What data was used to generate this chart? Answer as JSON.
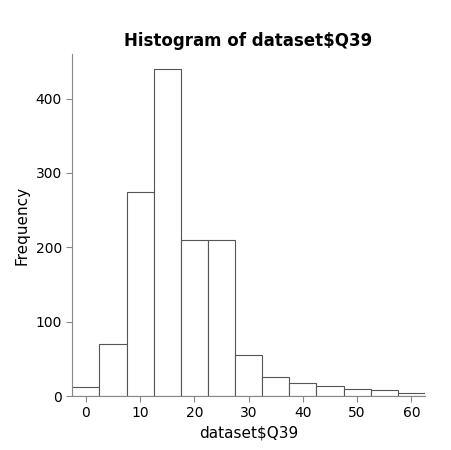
{
  "title": "Histogram of dataset$Q39",
  "xlabel": "dataset$Q39",
  "ylabel": "Frequency",
  "bin_edges": [
    -2.5,
    2.5,
    7.5,
    12.5,
    17.5,
    22.5,
    27.5,
    32.5,
    37.5,
    42.5,
    47.5,
    52.5,
    57.5,
    62.5
  ],
  "frequencies": [
    12,
    70,
    275,
    440,
    210,
    210,
    55,
    25,
    17,
    13,
    10,
    8,
    4
  ],
  "ylim": [
    0,
    460
  ],
  "yticks": [
    0,
    100,
    200,
    300,
    400
  ],
  "xticks": [
    0,
    10,
    20,
    30,
    40,
    50,
    60
  ],
  "bar_color": "#ffffff",
  "bar_edge_color": "#555555",
  "background_color": "#ffffff",
  "title_fontsize": 12,
  "label_fontsize": 11,
  "tick_fontsize": 10,
  "tick_color": "#000000",
  "label_color": "#000000",
  "title_color": "#000000"
}
